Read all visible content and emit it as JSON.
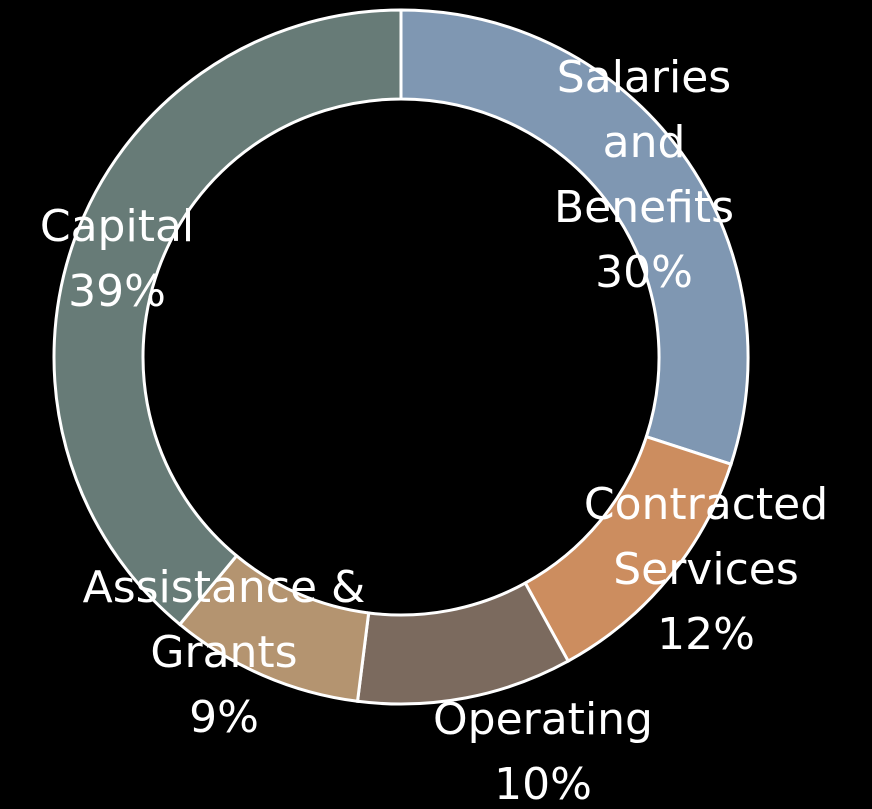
{
  "chart_data": {
    "type": "donut",
    "categories": [
      "Salaries\nand\nBenefits",
      "Contracted\nServices",
      "Operating",
      "Assistance &\nGrants",
      "Capital"
    ],
    "values": [
      30,
      12,
      10,
      9,
      39
    ],
    "value_labels": [
      "30%",
      "12%",
      "10%",
      "9%",
      "39%"
    ],
    "colors": [
      "#7f97b2",
      "#cc8d5f",
      "#7b6a5e",
      "#b49470",
      "#677b77"
    ]
  }
}
